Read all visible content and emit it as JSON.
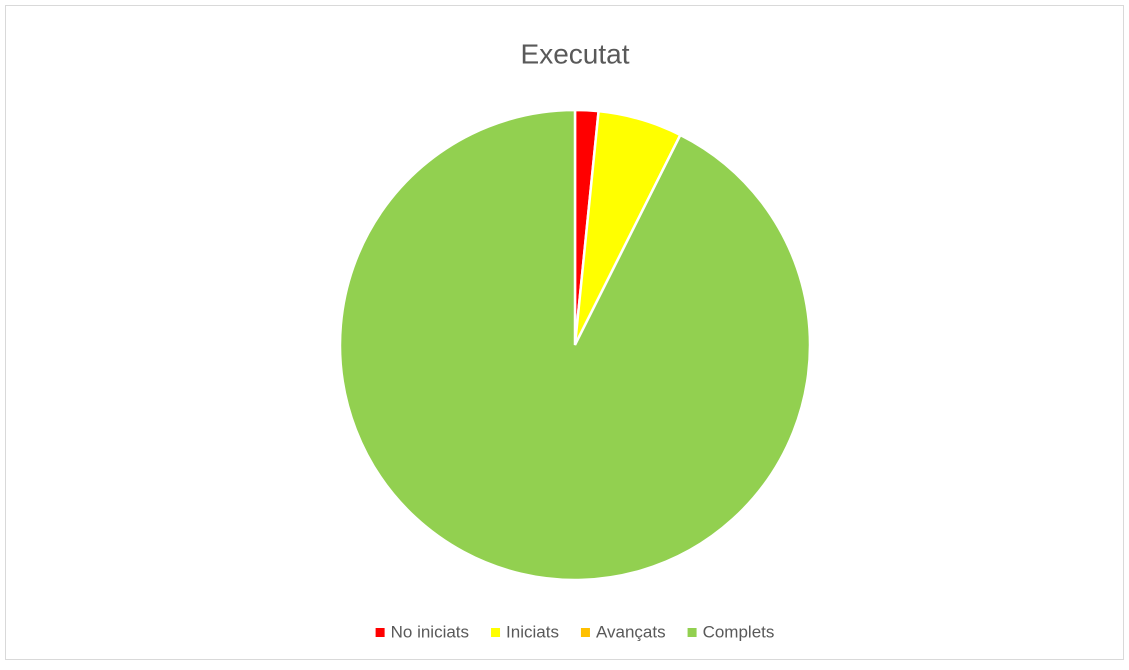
{
  "chart_data": {
    "type": "pie",
    "title": "Executat",
    "categories": [
      "No iniciats",
      "Iniciats",
      "Avançats",
      "Complets"
    ],
    "values": [
      1.6,
      5.8,
      0,
      92.6
    ],
    "colors": [
      "#ff0000",
      "#ffff00",
      "#ffc000",
      "#92d050"
    ],
    "legend": "bottom"
  }
}
